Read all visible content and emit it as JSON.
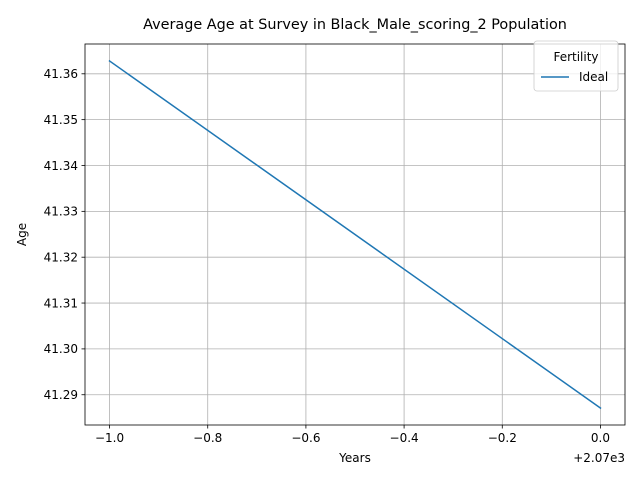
{
  "chart_data": {
    "type": "line",
    "title": "Average Age at Survey in Black_Male_scoring_2 Population",
    "xlabel": "Years",
    "ylabel": "Age",
    "x_offset_label": "+2.07e3",
    "x_ticks": [
      "−1.0",
      "−0.8",
      "−0.6",
      "−0.4",
      "−0.2",
      "0.0"
    ],
    "x_tick_values": [
      2069.0,
      2069.2,
      2069.4,
      2069.6,
      2069.8,
      2070.0
    ],
    "y_ticks": [
      "41.29",
      "41.30",
      "41.31",
      "41.32",
      "41.33",
      "41.34",
      "41.35",
      "41.36"
    ],
    "y_tick_values": [
      41.29,
      41.3,
      41.31,
      41.32,
      41.33,
      41.34,
      41.35,
      41.36
    ],
    "xlim": [
      2068.95,
      2070.05
    ],
    "ylim": [
      41.2834,
      41.3665
    ],
    "grid": true,
    "legend": {
      "title": "Fertility",
      "placement": "top-right"
    },
    "series": [
      {
        "name": "Ideal",
        "color": "#1f77b4",
        "x": [
          2069,
          2070
        ],
        "y": [
          41.3628,
          41.2871
        ]
      }
    ]
  }
}
